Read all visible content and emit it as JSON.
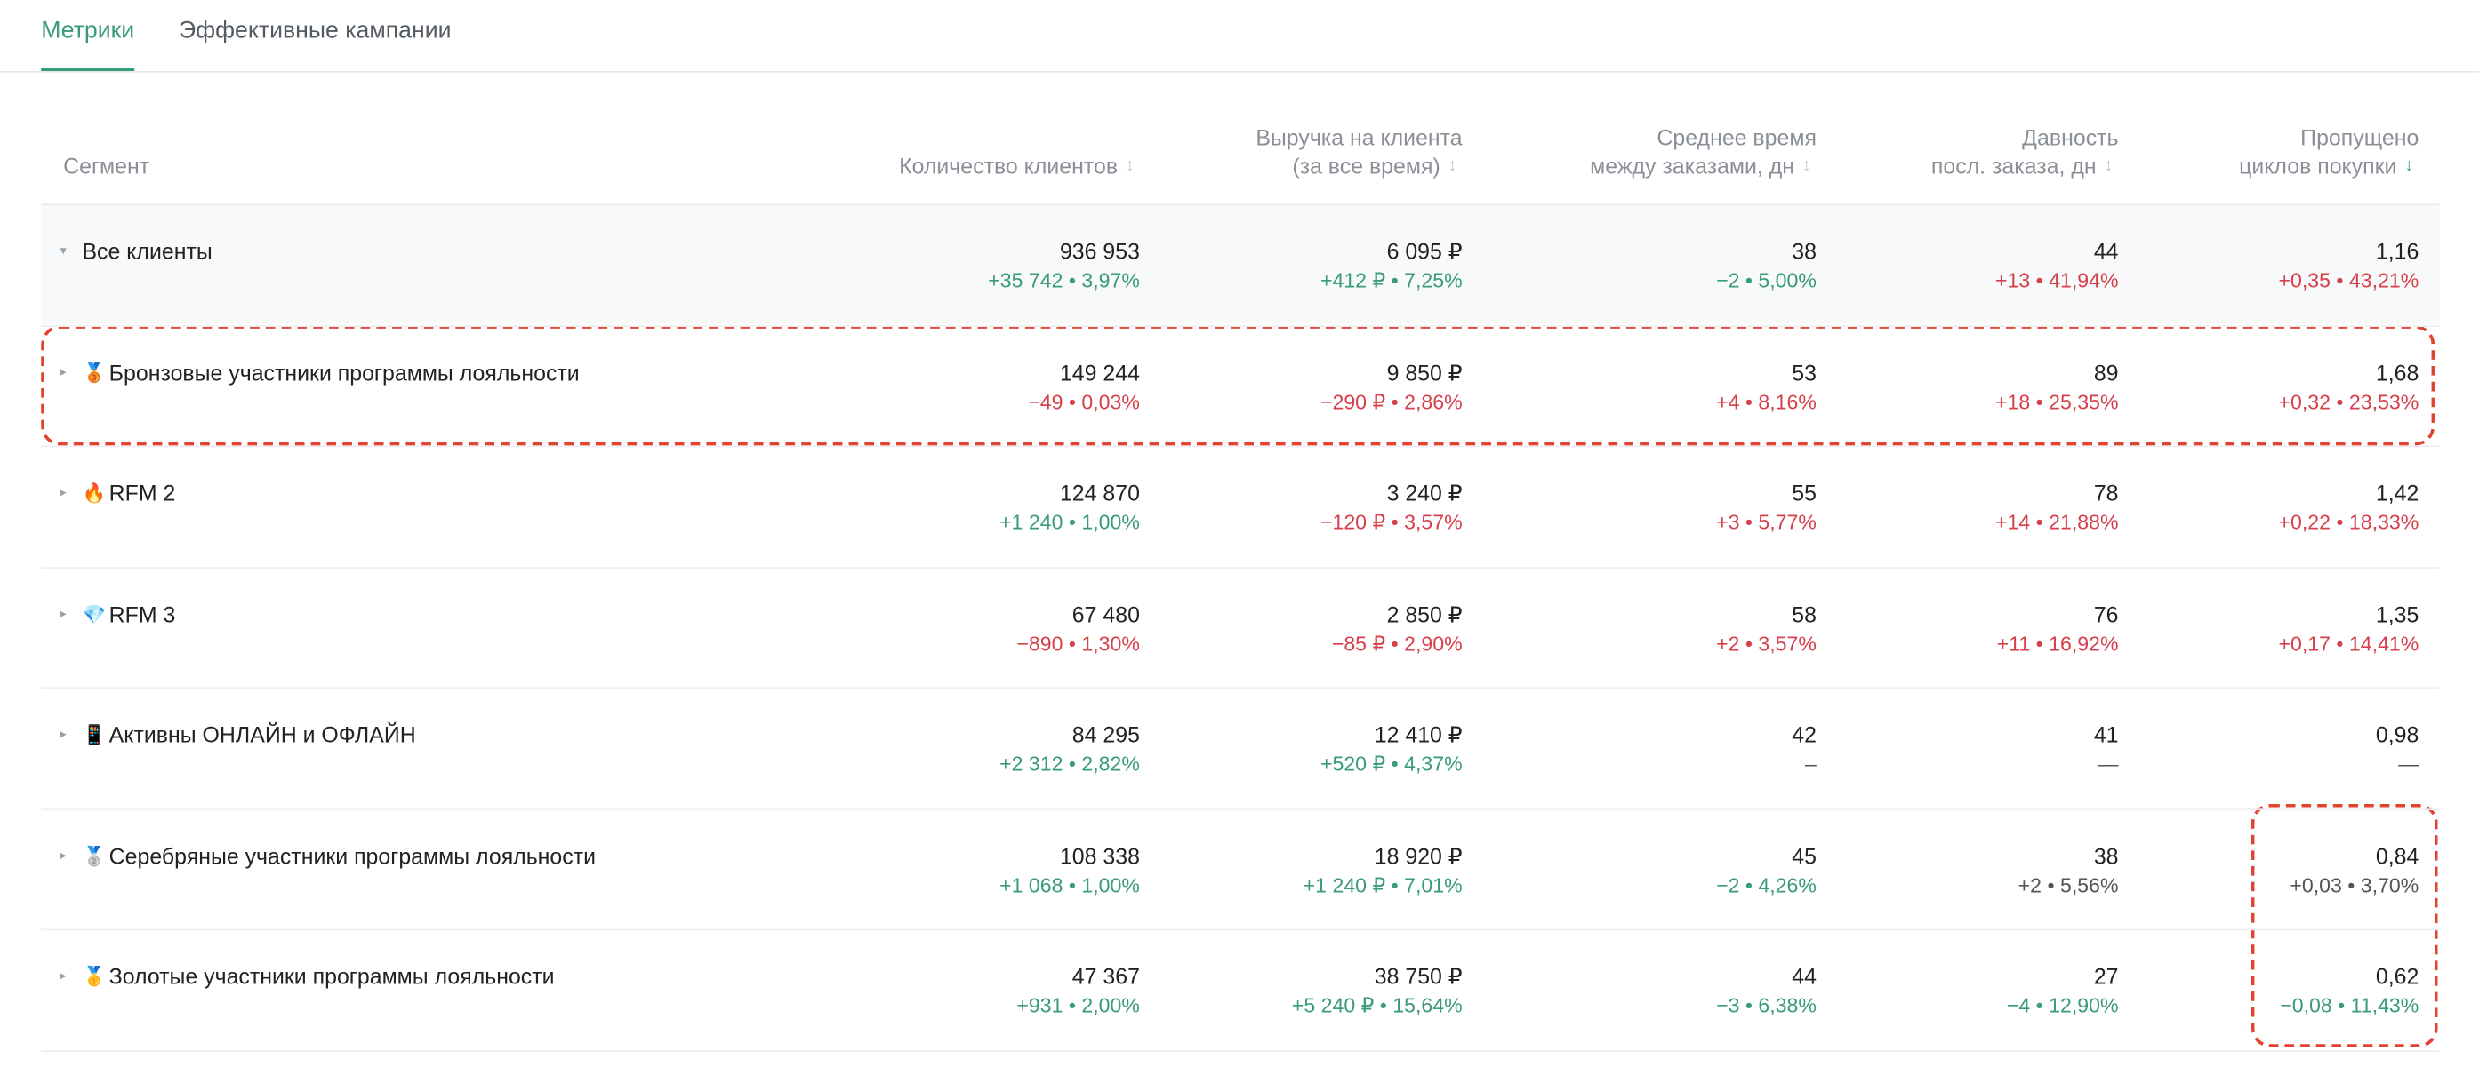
{
  "tabs": [
    {
      "label": "Метрики",
      "active": true
    },
    {
      "label": "Эффективные кампании",
      "active": false
    }
  ],
  "table": {
    "columns": [
      {
        "lines": [
          "Сегмент"
        ]
      },
      {
        "lines": [
          "Количество клиентов"
        ],
        "sort": "none"
      },
      {
        "lines": [
          "Выручка на клиента",
          "(за все время)"
        ],
        "sort": "none"
      },
      {
        "lines": [
          "Среднее время",
          "между заказами, дн"
        ],
        "sort": "none"
      },
      {
        "lines": [
          "Давность",
          "посл. заказа, дн"
        ],
        "sort": "none"
      },
      {
        "lines": [
          "Пропущено",
          "циклов покупки"
        ],
        "sort": "desc"
      }
    ],
    "rows": [
      {
        "label": "Все клиенты",
        "expanded": true,
        "cells": [
          {
            "value": "936 953",
            "delta": "+35 742 • 3,97%",
            "color": "#3a9b77"
          },
          {
            "value": "6 095 ₽",
            "delta": "+412 ₽ • 7,25%",
            "color": "#3a9b77"
          },
          {
            "value": "38",
            "delta": "−2 • 5,00%",
            "color": "#3a9b77"
          },
          {
            "value": "44",
            "delta": "+13 • 41,94%",
            "color": "#d6404b"
          },
          {
            "value": "1,16",
            "delta": "+0,35 • 43,21%",
            "color": "#d6404b"
          }
        ]
      },
      {
        "icon": "🥉",
        "label": "Бронзовые участники программы лояльности",
        "cells": [
          {
            "value": "149 244",
            "delta": "−49 • 0,03%",
            "color": "#d6404b"
          },
          {
            "value": "9 850 ₽",
            "delta": "−290 ₽ • 2,86%",
            "color": "#d6404b"
          },
          {
            "value": "53",
            "delta": "+4 • 8,16%",
            "color": "#d6404b"
          },
          {
            "value": "89",
            "delta": "+18 • 25,35%",
            "color": "#d6404b"
          },
          {
            "value": "1,68",
            "delta": "+0,32 • 23,53%",
            "color": "#d6404b"
          }
        ]
      },
      {
        "icon": "🔥",
        "label": "RFM 2",
        "cells": [
          {
            "value": "124 870",
            "delta": "+1 240 • 1,00%",
            "color": "#3a9b77"
          },
          {
            "value": "3 240 ₽",
            "delta": "−120 ₽ • 3,57%",
            "color": "#d6404b"
          },
          {
            "value": "55",
            "delta": "+3 • 5,77%",
            "color": "#d6404b"
          },
          {
            "value": "78",
            "delta": "+14 • 21,88%",
            "color": "#d6404b"
          },
          {
            "value": "1,42",
            "delta": "+0,22 • 18,33%",
            "color": "#d6404b"
          }
        ]
      },
      {
        "icon": "💎",
        "label": "RFM 3",
        "cells": [
          {
            "value": "67 480",
            "delta": "−890 • 1,30%",
            "color": "#d6404b"
          },
          {
            "value": "2 850 ₽",
            "delta": "−85 ₽ • 2,90%",
            "color": "#d6404b"
          },
          {
            "value": "58",
            "delta": "+2 • 3,57%",
            "color": "#d6404b"
          },
          {
            "value": "76",
            "delta": "+11 • 16,92%",
            "color": "#d6404b"
          },
          {
            "value": "1,35",
            "delta": "+0,17 • 14,41%",
            "color": "#d6404b"
          }
        ]
      },
      {
        "icon": "📱",
        "label": "Активны ОНЛАЙН и ОФЛАЙН",
        "cells": [
          {
            "value": "84 295",
            "delta": "+2 312 • 2,82%",
            "color": "#3a9b77"
          },
          {
            "value": "12 410 ₽",
            "delta": "+520 ₽ • 4,37%",
            "color": "#3a9b77"
          },
          {
            "value": "42",
            "delta": "–",
            "color": "#555555"
          },
          {
            "value": "41",
            "delta": "—",
            "color": "#555555"
          },
          {
            "value": "0,98",
            "delta": "—",
            "color": "#555555"
          }
        ]
      },
      {
        "icon": "🥈",
        "label": "Серебряные участники программы лояльности",
        "cells": [
          {
            "value": "108 338",
            "delta": "+1 068 • 1,00%",
            "color": "#3a9b77"
          },
          {
            "value": "18 920 ₽",
            "delta": "+1 240 ₽ • 7,01%",
            "color": "#3a9b77"
          },
          {
            "value": "45",
            "delta": "−2 • 4,26%",
            "color": "#3a9b77"
          },
          {
            "value": "38",
            "delta": "+2 • 5,56%",
            "color": "#555555"
          },
          {
            "value": "0,84",
            "delta": "+0,03 • 3,70%",
            "color": "#555555"
          }
        ]
      },
      {
        "icon": "🥇",
        "label": "Золотые участники программы лояльности",
        "cells": [
          {
            "value": "47 367",
            "delta": "+931 • 2,00%",
            "color": "#3a9b77"
          },
          {
            "value": "38 750 ₽",
            "delta": "+5 240 ₽ • 15,64%",
            "color": "#3a9b77"
          },
          {
            "value": "44",
            "delta": "−3 • 6,38%",
            "color": "#3a9b77"
          },
          {
            "value": "27",
            "delta": "−4 • 12,90%",
            "color": "#3a9b77"
          },
          {
            "value": "0,62",
            "delta": "−0,08 • 11,43%",
            "color": "#3a9b77"
          }
        ]
      }
    ]
  }
}
